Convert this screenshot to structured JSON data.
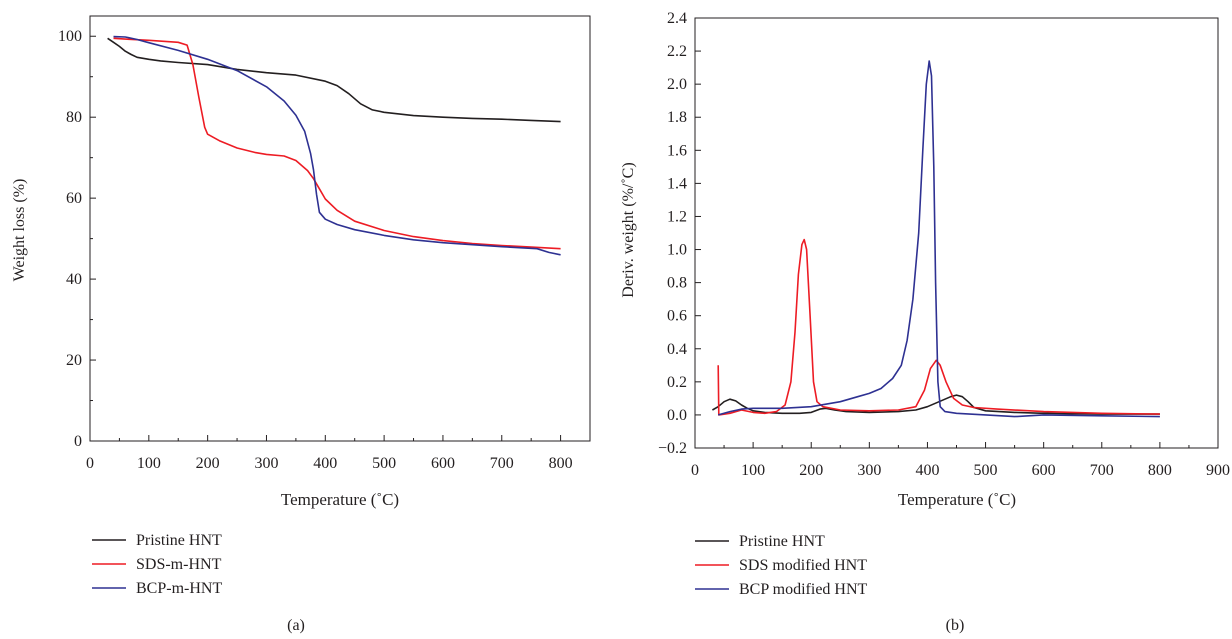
{
  "chart_data": [
    {
      "type": "line",
      "panel_label": "(a)",
      "xlabel": "Temperature (˚C)",
      "ylabel": "Weight loss (%)",
      "xlim": [
        0,
        850
      ],
      "ylim": [
        0,
        105
      ],
      "xticks": [
        0,
        100,
        200,
        300,
        400,
        500,
        600,
        700,
        800
      ],
      "yticks": [
        0,
        20,
        40,
        60,
        80,
        100
      ],
      "grid": false,
      "legend_position": "below-left",
      "series": [
        {
          "name": "Pristine HNT",
          "color": "#231f20",
          "points": [
            [
              30,
              99.5
            ],
            [
              40,
              98.5
            ],
            [
              50,
              97.5
            ],
            [
              60,
              96.3
            ],
            [
              70,
              95.5
            ],
            [
              80,
              94.8
            ],
            [
              100,
              94.3
            ],
            [
              120,
              93.9
            ],
            [
              150,
              93.5
            ],
            [
              200,
              93.0
            ],
            [
              250,
              91.8
            ],
            [
              300,
              91.0
            ],
            [
              350,
              90.4
            ],
            [
              400,
              88.9
            ],
            [
              420,
              87.8
            ],
            [
              440,
              85.8
            ],
            [
              460,
              83.3
            ],
            [
              480,
              81.8
            ],
            [
              500,
              81.2
            ],
            [
              550,
              80.4
            ],
            [
              600,
              80.0
            ],
            [
              650,
              79.7
            ],
            [
              700,
              79.5
            ],
            [
              750,
              79.2
            ],
            [
              800,
              78.9
            ]
          ]
        },
        {
          "name": "SDS-m-HNT",
          "color": "#ed1c24",
          "points": [
            [
              40,
              99.5
            ],
            [
              60,
              99.3
            ],
            [
              100,
              99.0
            ],
            [
              150,
              98.5
            ],
            [
              165,
              97.8
            ],
            [
              175,
              93.0
            ],
            [
              185,
              85.0
            ],
            [
              195,
              77.5
            ],
            [
              200,
              75.8
            ],
            [
              220,
              74.2
            ],
            [
              250,
              72.4
            ],
            [
              280,
              71.3
            ],
            [
              300,
              70.8
            ],
            [
              330,
              70.4
            ],
            [
              350,
              69.3
            ],
            [
              370,
              66.8
            ],
            [
              380,
              64.8
            ],
            [
              390,
              62.3
            ],
            [
              400,
              59.8
            ],
            [
              420,
              57.0
            ],
            [
              450,
              54.3
            ],
            [
              500,
              52.0
            ],
            [
              550,
              50.5
            ],
            [
              600,
              49.5
            ],
            [
              650,
              48.8
            ],
            [
              700,
              48.3
            ],
            [
              750,
              47.9
            ],
            [
              800,
              47.5
            ]
          ]
        },
        {
          "name": "BCP-m-HNT",
          "color": "#2e3192",
          "points": [
            [
              40,
              99.9
            ],
            [
              60,
              99.8
            ],
            [
              80,
              99.2
            ],
            [
              100,
              98.4
            ],
            [
              150,
              96.5
            ],
            [
              200,
              94.3
            ],
            [
              250,
              91.5
            ],
            [
              300,
              87.5
            ],
            [
              330,
              84.0
            ],
            [
              350,
              80.5
            ],
            [
              365,
              76.5
            ],
            [
              375,
              71.0
            ],
            [
              380,
              67.0
            ],
            [
              385,
              61.0
            ],
            [
              390,
              56.5
            ],
            [
              400,
              54.8
            ],
            [
              420,
              53.5
            ],
            [
              450,
              52.2
            ],
            [
              500,
              50.8
            ],
            [
              550,
              49.7
            ],
            [
              600,
              49.0
            ],
            [
              650,
              48.5
            ],
            [
              700,
              48.0
            ],
            [
              760,
              47.5
            ],
            [
              780,
              46.6
            ],
            [
              800,
              46.0
            ]
          ]
        }
      ]
    },
    {
      "type": "line",
      "panel_label": "(b)",
      "xlabel": "Temperature (˚C)",
      "ylabel": "Deriv. weight (%/˚C)",
      "xlim": [
        0,
        900
      ],
      "ylim": [
        -0.2,
        2.4
      ],
      "xticks": [
        0,
        100,
        200,
        300,
        400,
        500,
        600,
        700,
        800,
        900
      ],
      "yticks": [
        -0.2,
        0.0,
        0.2,
        0.4,
        0.6,
        0.8,
        1.0,
        1.2,
        1.4,
        1.6,
        1.8,
        2.0,
        2.2,
        2.4
      ],
      "ytick_labels": [
        "−0.2",
        "0.0",
        "0.2",
        "0.4",
        "0.6",
        "0.8",
        "1.0",
        "1.2",
        "1.4",
        "1.6",
        "1.8",
        "2.0",
        "2.2",
        "2.4"
      ],
      "grid": false,
      "legend_position": "below-left",
      "series": [
        {
          "name": "Pristine HNT",
          "color": "#231f20",
          "points": [
            [
              30,
              0.03
            ],
            [
              40,
              0.05
            ],
            [
              50,
              0.08
            ],
            [
              60,
              0.095
            ],
            [
              70,
              0.085
            ],
            [
              80,
              0.06
            ],
            [
              90,
              0.04
            ],
            [
              100,
              0.025
            ],
            [
              120,
              0.015
            ],
            [
              150,
              0.01
            ],
            [
              180,
              0.01
            ],
            [
              200,
              0.015
            ],
            [
              215,
              0.035
            ],
            [
              225,
              0.04
            ],
            [
              240,
              0.03
            ],
            [
              260,
              0.02
            ],
            [
              300,
              0.015
            ],
            [
              350,
              0.02
            ],
            [
              380,
              0.03
            ],
            [
              400,
              0.05
            ],
            [
              420,
              0.08
            ],
            [
              440,
              0.11
            ],
            [
              450,
              0.12
            ],
            [
              460,
              0.11
            ],
            [
              470,
              0.08
            ],
            [
              480,
              0.045
            ],
            [
              500,
              0.025
            ],
            [
              550,
              0.015
            ],
            [
              600,
              0.01
            ],
            [
              700,
              0.005
            ],
            [
              800,
              0.005
            ]
          ]
        },
        {
          "name": "SDS modified HNT",
          "color": "#ed1c24",
          "points": [
            [
              40,
              0.3
            ],
            [
              41,
              0.0
            ],
            [
              60,
              0.01
            ],
            [
              80,
              0.03
            ],
            [
              100,
              0.015
            ],
            [
              120,
              0.01
            ],
            [
              140,
              0.02
            ],
            [
              155,
              0.06
            ],
            [
              165,
              0.2
            ],
            [
              172,
              0.5
            ],
            [
              178,
              0.85
            ],
            [
              184,
              1.03
            ],
            [
              188,
              1.06
            ],
            [
              192,
              1.0
            ],
            [
              198,
              0.6
            ],
            [
              204,
              0.2
            ],
            [
              210,
              0.08
            ],
            [
              220,
              0.05
            ],
            [
              250,
              0.03
            ],
            [
              300,
              0.025
            ],
            [
              350,
              0.03
            ],
            [
              380,
              0.05
            ],
            [
              395,
              0.15
            ],
            [
              405,
              0.28
            ],
            [
              415,
              0.33
            ],
            [
              422,
              0.3
            ],
            [
              432,
              0.2
            ],
            [
              445,
              0.1
            ],
            [
              460,
              0.06
            ],
            [
              480,
              0.045
            ],
            [
              520,
              0.035
            ],
            [
              600,
              0.02
            ],
            [
              700,
              0.01
            ],
            [
              800,
              0.005
            ]
          ]
        },
        {
          "name": "BCP modified HNT",
          "color": "#2e3192",
          "points": [
            [
              40,
              0.0
            ],
            [
              60,
              0.02
            ],
            [
              80,
              0.035
            ],
            [
              100,
              0.04
            ],
            [
              150,
              0.04
            ],
            [
              200,
              0.05
            ],
            [
              250,
              0.08
            ],
            [
              280,
              0.11
            ],
            [
              300,
              0.13
            ],
            [
              320,
              0.16
            ],
            [
              340,
              0.22
            ],
            [
              355,
              0.3
            ],
            [
              365,
              0.45
            ],
            [
              375,
              0.7
            ],
            [
              385,
              1.1
            ],
            [
              392,
              1.6
            ],
            [
              398,
              2.0
            ],
            [
              403,
              2.14
            ],
            [
              407,
              2.05
            ],
            [
              411,
              1.5
            ],
            [
              414,
              0.8
            ],
            [
              418,
              0.2
            ],
            [
              422,
              0.05
            ],
            [
              430,
              0.02
            ],
            [
              450,
              0.01
            ],
            [
              500,
              0.0
            ],
            [
              550,
              -0.01
            ],
            [
              600,
              0.0
            ],
            [
              700,
              -0.005
            ],
            [
              800,
              -0.01
            ]
          ]
        }
      ]
    }
  ]
}
